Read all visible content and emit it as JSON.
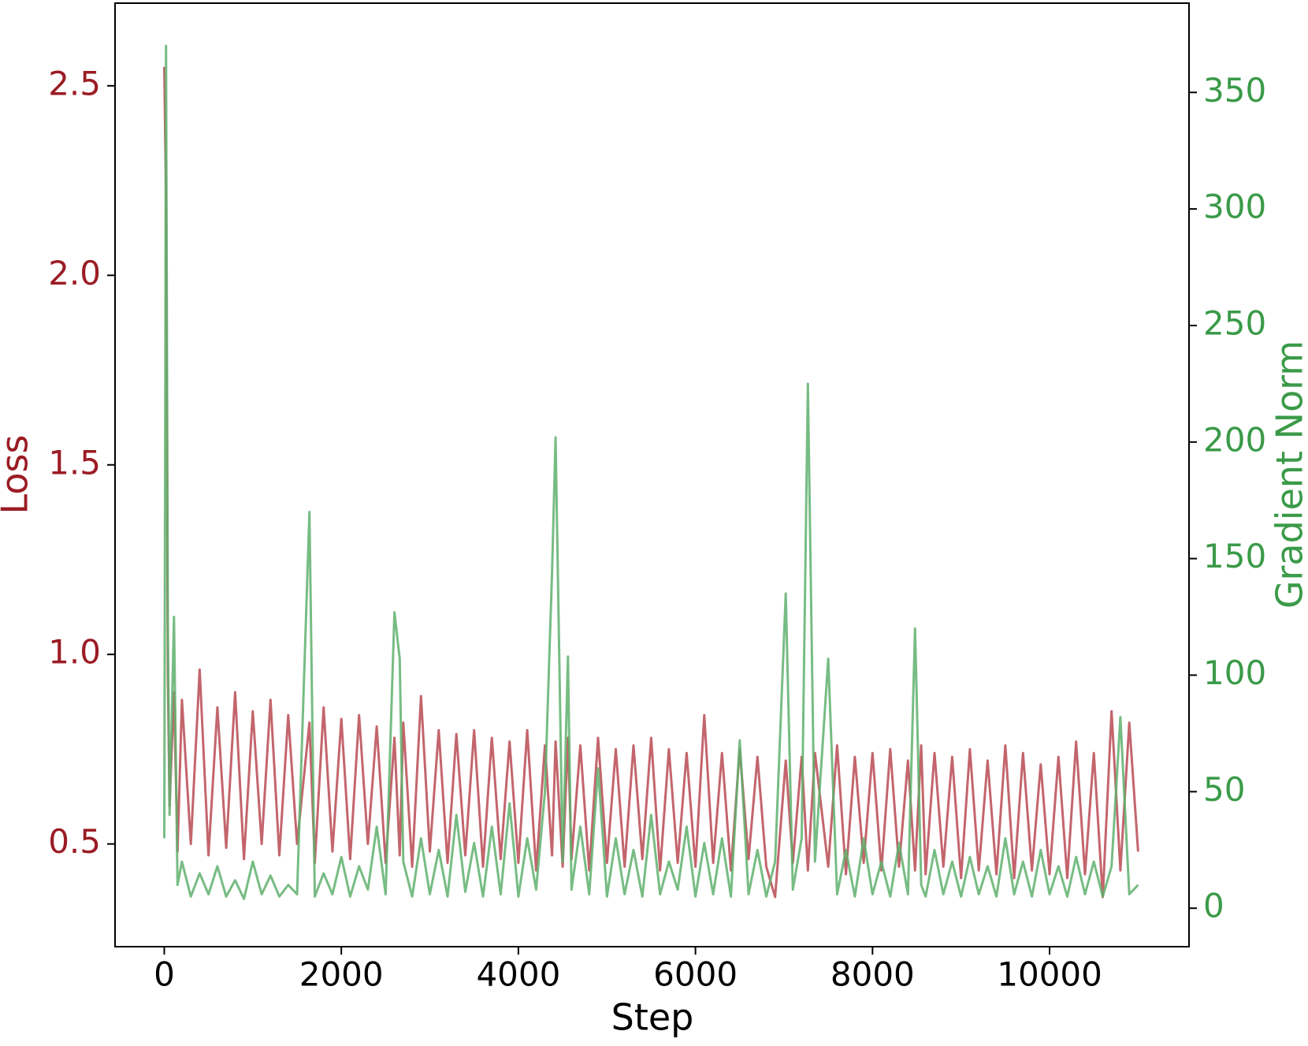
{
  "chart_data": {
    "type": "line",
    "x_label": "Step",
    "y_label": "Loss",
    "y2_label": "Gradient Norm",
    "y_label_color": "#9b1c24",
    "y2_label_color": "#3a9a48",
    "x": [
      0,
      20,
      40,
      60,
      110,
      150,
      200,
      300,
      400,
      500,
      600,
      700,
      800,
      900,
      1000,
      1100,
      1200,
      1300,
      1400,
      1500,
      1640,
      1700,
      1800,
      1900,
      2000,
      2100,
      2200,
      2300,
      2400,
      2500,
      2600,
      2660,
      2700,
      2800,
      2900,
      3000,
      3100,
      3200,
      3300,
      3400,
      3500,
      3600,
      3700,
      3800,
      3900,
      4000,
      4100,
      4200,
      4300,
      4380,
      4420,
      4500,
      4560,
      4600,
      4700,
      4800,
      4900,
      5000,
      5100,
      5200,
      5300,
      5400,
      5500,
      5600,
      5700,
      5800,
      5900,
      6000,
      6100,
      6200,
      6300,
      6400,
      6500,
      6600,
      6700,
      6800,
      6900,
      7020,
      7100,
      7200,
      7270,
      7350,
      7500,
      7600,
      7700,
      7800,
      7900,
      8000,
      8100,
      8200,
      8300,
      8400,
      8480,
      8550,
      8600,
      8700,
      8800,
      8900,
      9000,
      9100,
      9200,
      9300,
      9400,
      9500,
      9600,
      9700,
      9800,
      9900,
      10000,
      10100,
      10200,
      10300,
      10400,
      10500,
      10600,
      10700,
      10800,
      10900,
      11000
    ],
    "series": [
      {
        "name": "Loss",
        "color": "#b94a52",
        "values": [
          2.55,
          2.2,
          0.95,
          0.6,
          0.9,
          0.48,
          0.88,
          0.5,
          0.96,
          0.47,
          0.86,
          0.49,
          0.9,
          0.46,
          0.85,
          0.5,
          0.88,
          0.47,
          0.84,
          0.5,
          0.82,
          0.45,
          0.86,
          0.48,
          0.83,
          0.46,
          0.84,
          0.5,
          0.81,
          0.45,
          0.78,
          0.47,
          0.82,
          0.44,
          0.89,
          0.48,
          0.8,
          0.45,
          0.79,
          0.47,
          0.8,
          0.44,
          0.78,
          0.46,
          0.77,
          0.45,
          0.8,
          0.43,
          0.76,
          0.47,
          0.77,
          0.44,
          0.78,
          0.46,
          0.76,
          0.43,
          0.78,
          0.45,
          0.75,
          0.44,
          0.76,
          0.46,
          0.78,
          0.43,
          0.75,
          0.45,
          0.74,
          0.44,
          0.84,
          0.45,
          0.74,
          0.43,
          0.75,
          0.46,
          0.73,
          0.44,
          0.36,
          0.72,
          0.45,
          0.73,
          0.43,
          0.74,
          0.44,
          0.76,
          0.42,
          0.73,
          0.45,
          0.74,
          0.43,
          0.75,
          0.44,
          0.72,
          0.43,
          0.76,
          0.42,
          0.74,
          0.44,
          0.73,
          0.41,
          0.75,
          0.43,
          0.72,
          0.42,
          0.76,
          0.41,
          0.74,
          0.43,
          0.71,
          0.42,
          0.73,
          0.41,
          0.77,
          0.42,
          0.74,
          0.36,
          0.85,
          0.43,
          0.82,
          0.48
        ]
      },
      {
        "name": "Gradient Norm",
        "color": "#5fb06d",
        "axis": "y2",
        "values": [
          30,
          370,
          120,
          40,
          125,
          10,
          20,
          5,
          15,
          6,
          18,
          5,
          12,
          4,
          20,
          6,
          14,
          5,
          10,
          6,
          170,
          5,
          15,
          6,
          22,
          5,
          18,
          8,
          35,
          6,
          127,
          107,
          20,
          5,
          30,
          6,
          25,
          5,
          40,
          7,
          28,
          5,
          35,
          6,
          45,
          5,
          30,
          8,
          50,
          144,
          202,
          20,
          108,
          8,
          35,
          6,
          60,
          5,
          30,
          6,
          25,
          5,
          40,
          6,
          20,
          8,
          35,
          5,
          28,
          6,
          30,
          5,
          72,
          6,
          25,
          5,
          20,
          135,
          8,
          30,
          225,
          20,
          107,
          6,
          25,
          5,
          30,
          6,
          20,
          5,
          28,
          6,
          120,
          10,
          5,
          25,
          6,
          20,
          5,
          22,
          6,
          18,
          5,
          30,
          6,
          20,
          5,
          25,
          6,
          18,
          5,
          22,
          6,
          20,
          5,
          18,
          82,
          6,
          10
        ]
      }
    ],
    "xlim": [
      -556,
      11575
    ],
    "xticks": [
      0,
      2000,
      4000,
      6000,
      8000,
      10000
    ],
    "ylim": [
      0.229,
      2.718
    ],
    "yticks": [
      0.5,
      {
        "value": 1,
        "label": "1.0"
      },
      1.5,
      {
        "value": 2,
        "label": "2.0"
      },
      2.5
    ],
    "y2lim": [
      -16.5,
      388.3
    ],
    "y2ticks": [
      0,
      50,
      100,
      150,
      200,
      250,
      300,
      350
    ],
    "grid": false
  }
}
